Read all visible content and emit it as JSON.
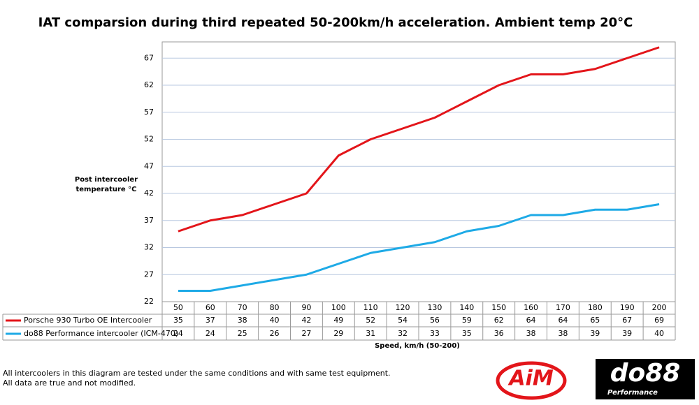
{
  "chart_data": {
    "type": "line",
    "title": "IAT comparsion during third repeated 50-200km/h acceleration. Ambient temp 20°C",
    "y_label": "Post intercooler temperature °C",
    "x_label": "Speed, km/h (50-200)",
    "categories": [
      50,
      60,
      70,
      80,
      90,
      100,
      110,
      120,
      130,
      140,
      150,
      160,
      170,
      180,
      190,
      200
    ],
    "series": [
      {
        "name": "Porsche 930 Turbo OE Intercooler",
        "color": "#e3151a",
        "values": [
          35,
          37,
          38,
          40,
          42,
          49,
          52,
          54,
          56,
          59,
          62,
          64,
          64,
          65,
          67,
          69
        ]
      },
      {
        "name": "do88 Performance intercooler (ICM-470)",
        "color": "#1eaae6",
        "values": [
          24,
          24,
          25,
          26,
          27,
          29,
          31,
          32,
          33,
          35,
          36,
          38,
          38,
          39,
          39,
          40
        ]
      }
    ],
    "ylim": [
      22,
      70
    ],
    "yticks": [
      22,
      27,
      32,
      37,
      42,
      47,
      52,
      57,
      62,
      67
    ],
    "grid": true
  },
  "footer": {
    "lines": [
      "All intercoolers in this diagram are tested under the same conditions and with same test equipment.",
      "All data are true and not modified."
    ],
    "logos": {
      "aim": "AiM",
      "do88": "do88",
      "do88_sub": "Performance"
    }
  }
}
